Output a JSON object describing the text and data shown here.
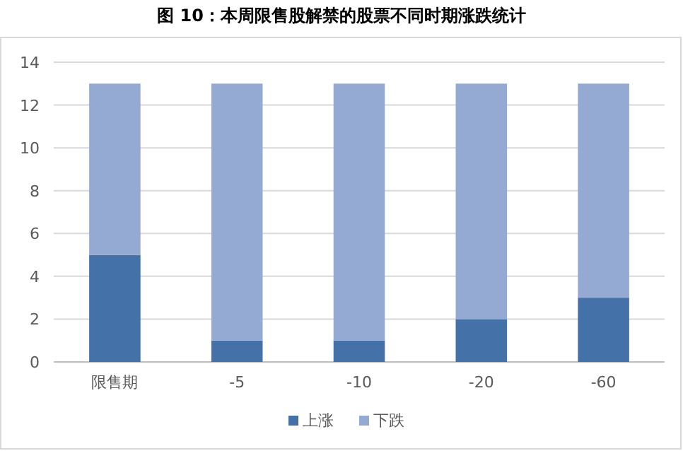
{
  "chart_data": {
    "type": "bar",
    "title": "图 10：本周限售股解禁的股票不同时期涨跌统计",
    "categories": [
      "限售期",
      "-5",
      "-10",
      "-20",
      "-60"
    ],
    "stacked": true,
    "series": [
      {
        "name": "上涨",
        "color": "#4472a8",
        "values": [
          5,
          1,
          1,
          2,
          3
        ]
      },
      {
        "name": "下跌",
        "color": "#95aad3",
        "values": [
          8,
          12,
          12,
          11,
          10
        ]
      }
    ],
    "ylim": [
      0,
      14
    ],
    "yticks": [
      0,
      2,
      4,
      6,
      8,
      10,
      12,
      14
    ],
    "grid": "y",
    "legend": "bottom"
  }
}
